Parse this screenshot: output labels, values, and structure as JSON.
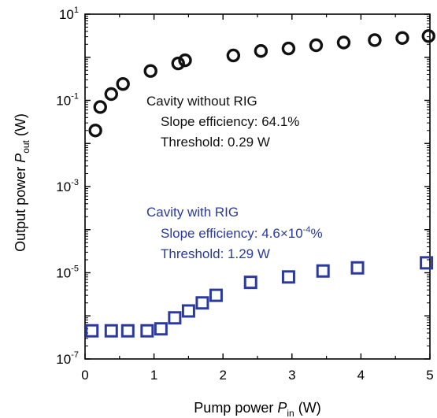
{
  "chart_data": {
    "type": "scatter",
    "xlabel": {
      "main": "Pump power ",
      "var": "P",
      "sub": "in",
      "unit": " (W)"
    },
    "ylabel": {
      "main": "Output power ",
      "var": "P",
      "sub": "out",
      "unit": " (W)"
    },
    "xlim": [
      0,
      5
    ],
    "ylim": [
      1e-07,
      10
    ],
    "yscale": "log",
    "x_ticks": [
      "0",
      "1",
      "2",
      "3",
      "4",
      "5"
    ],
    "y_ticks": [
      {
        "base": "10",
        "exp": "1"
      },
      {
        "base": "10",
        "exp": "-1"
      },
      {
        "base": "10",
        "exp": "-3"
      },
      {
        "base": "10",
        "exp": "-5"
      },
      {
        "base": "10",
        "exp": "-7"
      }
    ],
    "grid": false,
    "series": [
      {
        "marker": "circle",
        "color": "#111111",
        "x": [
          0.15,
          0.22,
          0.38,
          0.55,
          0.95,
          1.35,
          1.45,
          2.15,
          2.55,
          2.95,
          3.35,
          3.75,
          4.2,
          4.6,
          4.98
        ],
        "y": [
          0.02,
          0.07,
          0.14,
          0.24,
          0.48,
          0.72,
          0.85,
          1.1,
          1.4,
          1.6,
          1.9,
          2.2,
          2.5,
          2.8,
          3.1
        ]
      },
      {
        "marker": "square",
        "color": "#2b3a9b",
        "x": [
          0.1,
          0.38,
          0.62,
          0.9,
          1.1,
          1.3,
          1.5,
          1.7,
          1.9,
          2.4,
          2.95,
          3.45,
          3.95,
          4.95
        ],
        "y": [
          4.5e-07,
          4.5e-07,
          4.5e-07,
          4.5e-07,
          5e-07,
          9e-07,
          1.3e-06,
          2e-06,
          3e-06,
          6e-06,
          8e-06,
          1.1e-05,
          1.3e-05,
          1.7e-05
        ]
      }
    ],
    "annotations": [
      {
        "color": "#111111",
        "lines": [
          "Cavity without RIG",
          "Slope efficiency: 64.1%",
          "Threshold: 0.29 W"
        ]
      },
      {
        "color": "#2b3a9b",
        "lines": [
          "Cavity with RIG",
          "Slope efficiency: 4.6×10",
          "%",
          "Threshold: 1.29 W"
        ],
        "superscript": "-4"
      }
    ]
  }
}
